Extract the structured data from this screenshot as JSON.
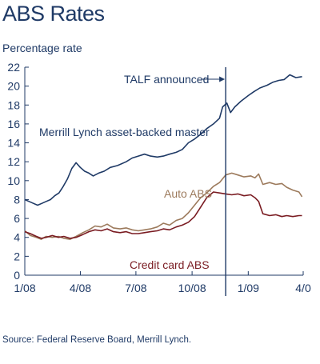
{
  "chart_data": {
    "type": "line",
    "title": "ABS Rates",
    "ylabel": "Percentage rate",
    "xlabel": "",
    "source": "Source: Federal Reserve Board, Merrill Lynch.",
    "ylim": [
      0,
      22
    ],
    "yticks": [
      0,
      2,
      4,
      6,
      8,
      10,
      12,
      14,
      16,
      18,
      20,
      22
    ],
    "xlim": [
      "2008-01-01",
      "2009-04-01"
    ],
    "xticks": [
      {
        "date": "2008-01-01",
        "label": "1/08"
      },
      {
        "date": "2008-04-01",
        "label": "4/08"
      },
      {
        "date": "2008-07-01",
        "label": "7/08"
      },
      {
        "date": "2008-10-01",
        "label": "10/08"
      },
      {
        "date": "2009-01-01",
        "label": "1/09"
      },
      {
        "date": "2009-04-01",
        "label": "4/0"
      }
    ],
    "grid": false,
    "annotations": [
      {
        "text": "TALF announced",
        "date": "2008-11-25",
        "type": "vertical-line-with-arrow"
      },
      {
        "text": "Merrill Lynch asset-backed master",
        "series": "ml"
      },
      {
        "text": "Auto ABS",
        "series": "auto"
      },
      {
        "text": "Credit card ABS",
        "series": "cc"
      }
    ],
    "series": [
      {
        "key": "ml",
        "color": "#1f3a66",
        "points": [
          [
            "2008-01-01",
            8.0
          ],
          [
            "2008-01-08",
            7.8
          ],
          [
            "2008-01-15",
            7.6
          ],
          [
            "2008-01-22",
            7.4
          ],
          [
            "2008-01-29",
            7.6
          ],
          [
            "2008-02-05",
            7.8
          ],
          [
            "2008-02-12",
            8.0
          ],
          [
            "2008-02-19",
            8.4
          ],
          [
            "2008-02-26",
            8.7
          ],
          [
            "2008-03-04",
            9.4
          ],
          [
            "2008-03-11",
            10.2
          ],
          [
            "2008-03-18",
            11.3
          ],
          [
            "2008-03-25",
            11.9
          ],
          [
            "2008-04-01",
            11.4
          ],
          [
            "2008-04-08",
            11.0
          ],
          [
            "2008-04-15",
            10.8
          ],
          [
            "2008-04-22",
            10.5
          ],
          [
            "2008-05-01",
            10.8
          ],
          [
            "2008-05-10",
            11.0
          ],
          [
            "2008-05-20",
            11.4
          ],
          [
            "2008-06-01",
            11.6
          ],
          [
            "2008-06-15",
            12.0
          ],
          [
            "2008-06-25",
            12.4
          ],
          [
            "2008-07-05",
            12.6
          ],
          [
            "2008-07-15",
            12.8
          ],
          [
            "2008-07-25",
            12.6
          ],
          [
            "2008-08-05",
            12.5
          ],
          [
            "2008-08-15",
            12.6
          ],
          [
            "2008-08-25",
            12.8
          ],
          [
            "2008-09-05",
            13.0
          ],
          [
            "2008-09-15",
            13.3
          ],
          [
            "2008-09-25",
            14.0
          ],
          [
            "2008-10-05",
            14.4
          ],
          [
            "2008-10-15",
            14.9
          ],
          [
            "2008-10-25",
            15.5
          ],
          [
            "2008-11-05",
            16.0
          ],
          [
            "2008-11-15",
            16.6
          ],
          [
            "2008-11-20",
            17.8
          ],
          [
            "2008-11-27",
            18.2
          ],
          [
            "2008-12-03",
            17.2
          ],
          [
            "2008-12-10",
            17.8
          ],
          [
            "2008-12-20",
            18.4
          ],
          [
            "2009-01-01",
            19.0
          ],
          [
            "2009-01-10",
            19.4
          ],
          [
            "2009-01-20",
            19.8
          ],
          [
            "2009-02-01",
            20.1
          ],
          [
            "2009-02-10",
            20.4
          ],
          [
            "2009-02-20",
            20.6
          ],
          [
            "2009-03-01",
            20.7
          ],
          [
            "2009-03-10",
            21.2
          ],
          [
            "2009-03-20",
            20.9
          ],
          [
            "2009-03-30",
            21.0
          ]
        ]
      },
      {
        "key": "auto",
        "color": "#9c7a5c",
        "points": [
          [
            "2008-01-01",
            4.7
          ],
          [
            "2008-01-10",
            4.2
          ],
          [
            "2008-01-20",
            4.0
          ],
          [
            "2008-01-28",
            3.8
          ],
          [
            "2008-02-05",
            4.1
          ],
          [
            "2008-02-15",
            4.0
          ],
          [
            "2008-02-25",
            4.1
          ],
          [
            "2008-03-05",
            3.9
          ],
          [
            "2008-03-15",
            3.8
          ],
          [
            "2008-03-25",
            4.1
          ],
          [
            "2008-04-05",
            4.5
          ],
          [
            "2008-04-15",
            4.8
          ],
          [
            "2008-04-25",
            5.2
          ],
          [
            "2008-05-05",
            5.1
          ],
          [
            "2008-05-15",
            5.4
          ],
          [
            "2008-05-25",
            5.0
          ],
          [
            "2008-06-05",
            4.9
          ],
          [
            "2008-06-15",
            5.0
          ],
          [
            "2008-06-25",
            4.8
          ],
          [
            "2008-07-05",
            4.7
          ],
          [
            "2008-07-15",
            4.8
          ],
          [
            "2008-07-25",
            4.9
          ],
          [
            "2008-08-05",
            5.1
          ],
          [
            "2008-08-15",
            5.5
          ],
          [
            "2008-08-25",
            5.3
          ],
          [
            "2008-09-05",
            5.8
          ],
          [
            "2008-09-15",
            6.0
          ],
          [
            "2008-09-25",
            6.6
          ],
          [
            "2008-10-05",
            7.4
          ],
          [
            "2008-10-15",
            8.2
          ],
          [
            "2008-10-25",
            8.7
          ],
          [
            "2008-11-05",
            9.4
          ],
          [
            "2008-11-15",
            9.8
          ],
          [
            "2008-11-25",
            10.6
          ],
          [
            "2008-12-05",
            10.8
          ],
          [
            "2008-12-15",
            10.6
          ],
          [
            "2008-12-25",
            10.4
          ],
          [
            "2009-01-05",
            10.5
          ],
          [
            "2009-01-12",
            10.3
          ],
          [
            "2009-01-18",
            10.7
          ],
          [
            "2009-01-25",
            9.6
          ],
          [
            "2009-02-05",
            9.8
          ],
          [
            "2009-02-15",
            9.6
          ],
          [
            "2009-02-25",
            9.7
          ],
          [
            "2009-03-05",
            9.3
          ],
          [
            "2009-03-15",
            9.0
          ],
          [
            "2009-03-25",
            8.8
          ],
          [
            "2009-03-30",
            8.3
          ]
        ]
      },
      {
        "key": "cc",
        "color": "#7a1c22",
        "points": [
          [
            "2008-01-01",
            4.6
          ],
          [
            "2008-01-10",
            4.4
          ],
          [
            "2008-01-20",
            4.1
          ],
          [
            "2008-01-28",
            3.9
          ],
          [
            "2008-02-05",
            4.0
          ],
          [
            "2008-02-15",
            4.2
          ],
          [
            "2008-02-25",
            4.0
          ],
          [
            "2008-03-05",
            4.1
          ],
          [
            "2008-03-15",
            3.9
          ],
          [
            "2008-03-25",
            4.0
          ],
          [
            "2008-04-05",
            4.3
          ],
          [
            "2008-04-15",
            4.6
          ],
          [
            "2008-04-25",
            4.8
          ],
          [
            "2008-05-05",
            4.7
          ],
          [
            "2008-05-15",
            4.9
          ],
          [
            "2008-05-25",
            4.6
          ],
          [
            "2008-06-05",
            4.5
          ],
          [
            "2008-06-15",
            4.6
          ],
          [
            "2008-06-25",
            4.4
          ],
          [
            "2008-07-05",
            4.4
          ],
          [
            "2008-07-15",
            4.5
          ],
          [
            "2008-07-25",
            4.6
          ],
          [
            "2008-08-05",
            4.7
          ],
          [
            "2008-08-15",
            4.9
          ],
          [
            "2008-08-25",
            4.8
          ],
          [
            "2008-09-05",
            5.1
          ],
          [
            "2008-09-15",
            5.3
          ],
          [
            "2008-09-25",
            5.6
          ],
          [
            "2008-10-05",
            6.2
          ],
          [
            "2008-10-15",
            7.2
          ],
          [
            "2008-10-25",
            8.2
          ],
          [
            "2008-11-05",
            8.8
          ],
          [
            "2008-11-15",
            8.7
          ],
          [
            "2008-11-25",
            8.6
          ],
          [
            "2008-12-05",
            8.5
          ],
          [
            "2008-12-15",
            8.6
          ],
          [
            "2008-12-25",
            8.4
          ],
          [
            "2009-01-05",
            8.5
          ],
          [
            "2009-01-12",
            8.2
          ],
          [
            "2009-01-18",
            7.8
          ],
          [
            "2009-01-25",
            6.5
          ],
          [
            "2009-02-05",
            6.3
          ],
          [
            "2009-02-15",
            6.4
          ],
          [
            "2009-02-25",
            6.2
          ],
          [
            "2009-03-05",
            6.3
          ],
          [
            "2009-03-15",
            6.2
          ],
          [
            "2009-03-25",
            6.3
          ],
          [
            "2009-03-30",
            6.3
          ]
        ]
      }
    ]
  }
}
